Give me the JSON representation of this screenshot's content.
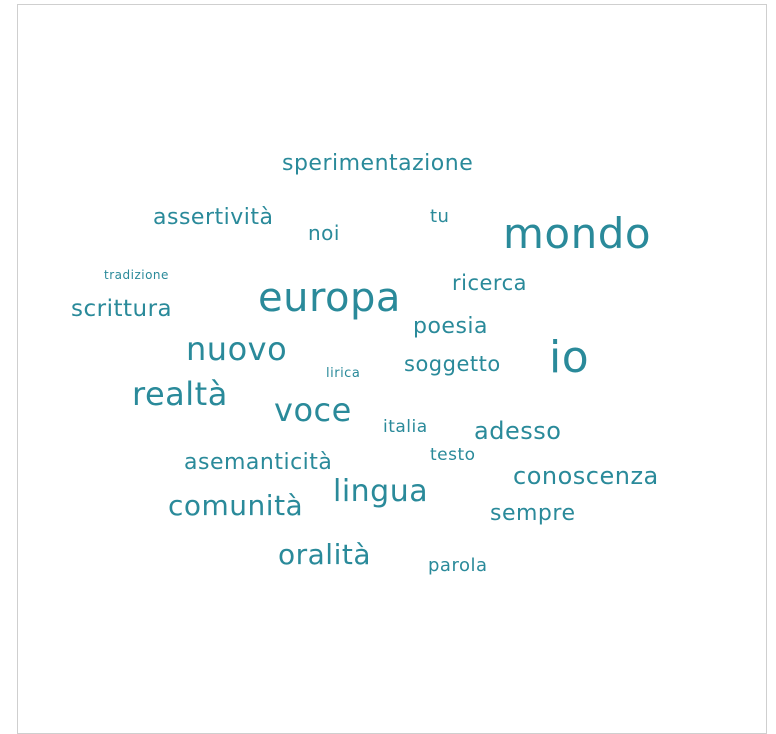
{
  "word_cloud": {
    "color": "#2a8a9a",
    "words": [
      {
        "text": "sperimentazione"
      },
      {
        "text": "assertività"
      },
      {
        "text": "noi"
      },
      {
        "text": "tu"
      },
      {
        "text": "mondo"
      },
      {
        "text": "tradizione"
      },
      {
        "text": "ricerca"
      },
      {
        "text": "europa"
      },
      {
        "text": "scrittura"
      },
      {
        "text": "poesia"
      },
      {
        "text": "nuovo"
      },
      {
        "text": "io"
      },
      {
        "text": "lirica"
      },
      {
        "text": "soggetto"
      },
      {
        "text": "realtà"
      },
      {
        "text": "voce"
      },
      {
        "text": "italia"
      },
      {
        "text": "adesso"
      },
      {
        "text": "asemanticità"
      },
      {
        "text": "testo"
      },
      {
        "text": "conoscenza"
      },
      {
        "text": "lingua"
      },
      {
        "text": "comunità"
      },
      {
        "text": "sempre"
      },
      {
        "text": "oralità"
      },
      {
        "text": "parola"
      }
    ]
  }
}
